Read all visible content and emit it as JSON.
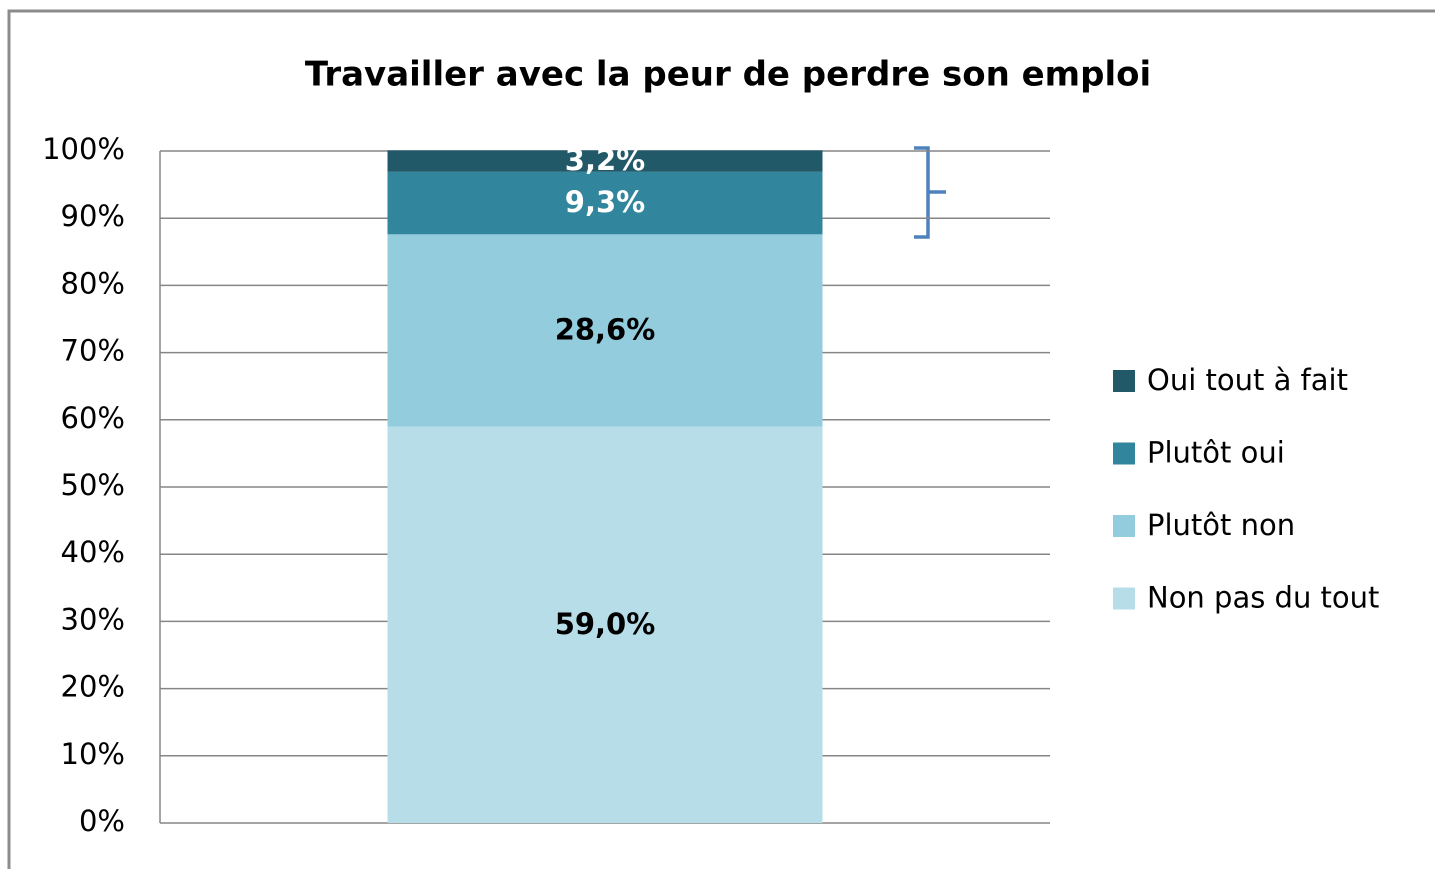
{
  "chart_data": {
    "type": "stacked_bar",
    "title": "Travailler avec la peur de perdre son emploi",
    "categories": [
      null
    ],
    "series": [
      {
        "name": "Non pas du tout",
        "color": "#b7dee8",
        "label_color": "#000000",
        "values": [
          59.0
        ],
        "value_labels": [
          "59,0%"
        ]
      },
      {
        "name": "Plutôt non",
        "color": "#93cddd",
        "label_color": "#000000",
        "values": [
          28.6
        ],
        "value_labels": [
          "28,6%"
        ]
      },
      {
        "name": "Plutôt oui",
        "color": "#31859c",
        "label_color": "#ffffff",
        "values": [
          9.3
        ],
        "value_labels": [
          "9,3%"
        ]
      },
      {
        "name": "Oui tout à fait",
        "color": "#215968",
        "label_color": "#ffffff",
        "values": [
          3.2
        ],
        "value_labels": [
          "3,2%"
        ]
      }
    ],
    "ylim": [
      0,
      100
    ],
    "yticks": [
      {
        "value": 0,
        "label": "0%"
      },
      {
        "value": 10,
        "label": "10%"
      },
      {
        "value": 20,
        "label": "20%"
      },
      {
        "value": 30,
        "label": "30%"
      },
      {
        "value": 40,
        "label": "40%"
      },
      {
        "value": 50,
        "label": "50%"
      },
      {
        "value": 60,
        "label": "60%"
      },
      {
        "value": 70,
        "label": "70%"
      },
      {
        "value": 80,
        "label": "80%"
      },
      {
        "value": 90,
        "label": "90%"
      },
      {
        "value": 100,
        "label": "100%"
      }
    ],
    "grid": true,
    "legend": "right"
  }
}
